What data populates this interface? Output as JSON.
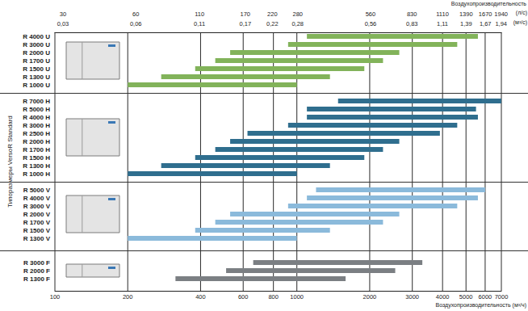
{
  "chart_data": {
    "type": "bar",
    "orientation": "horizontal",
    "log": "x",
    "grid": true,
    "xlabel": "Воздухопроизводительность (м³/ч)",
    "ylabel": "Типоразмеры VersoR Standard",
    "x2label": "Воздухопроизводительность",
    "x2units": [
      "(л/с)",
      "(м³/с)"
    ],
    "xlim": [
      100,
      7000
    ],
    "xticks": [
      100,
      200,
      400,
      600,
      800,
      1000,
      2000,
      3000,
      4000,
      5000,
      6000,
      7000
    ],
    "x2lim": [
      27.78,
      1944.44
    ],
    "x2ticks": [
      {
        "value": 30,
        "label": "30\n0,03"
      },
      {
        "value": 60,
        "label": "60\n0,06"
      },
      {
        "value": 110,
        "label": "110\n0,11"
      },
      {
        "value": 170,
        "label": "170\n0,17"
      },
      {
        "value": 220,
        "label": "220\n0,22"
      },
      {
        "value": 280,
        "label": "280\n0,28"
      },
      {
        "value": 560,
        "label": "560\n0,56"
      },
      {
        "value": 830,
        "label": "830\n0,83"
      },
      {
        "value": 1110,
        "label": "1110\n1,11"
      },
      {
        "value": 1390,
        "label": "1390\n1,39"
      },
      {
        "value": 1670,
        "label": "1670\n1,67"
      },
      {
        "value": 1940,
        "label": "1940\n1,94"
      }
    ],
    "categories": [
      "R 4000 U",
      "R 3000 U",
      "R 2000 U",
      "R 1700 U",
      "R 1500 U",
      "R 1300 U",
      "R 1000 U",
      null,
      "R 7000 H",
      "R 5000 H",
      "R 4000 H",
      "R 3000 H",
      "R 2500 H",
      "R 2000 H",
      "R 1700 H",
      "R 1500 H",
      "R 1300 H",
      "R 1000 H",
      null,
      "R 5000 V",
      "R 4000 V",
      "R 3000 V",
      "R 2000 V",
      "R 1700 V",
      "R 1500 V",
      "R 1300 V",
      null,
      null,
      "R 3000 F",
      "R 2000 F",
      "R 1300 F",
      null
    ],
    "values": [
      [
        1100,
        5600
      ],
      [
        920,
        4600
      ],
      [
        530,
        2650
      ],
      [
        460,
        2270
      ],
      [
        380,
        1900
      ],
      [
        275,
        1370
      ],
      [
        200,
        1000
      ],
      null,
      [
        1480,
        7000
      ],
      [
        1100,
        5500
      ],
      [
        1100,
        5600
      ],
      [
        920,
        4600
      ],
      [
        625,
        3900
      ],
      [
        530,
        2650
      ],
      [
        460,
        2270
      ],
      [
        380,
        1900
      ],
      [
        275,
        1370
      ],
      [
        200,
        1000
      ],
      null,
      [
        1200,
        6000
      ],
      [
        1100,
        5600
      ],
      [
        920,
        4600
      ],
      [
        530,
        2650
      ],
      [
        460,
        2270
      ],
      [
        380,
        1370
      ],
      [
        200,
        1000
      ],
      null,
      null,
      [
        660,
        3300
      ],
      [
        510,
        2550
      ],
      [
        315,
        1590
      ],
      null
    ],
    "colors": [
      "#82b35a",
      "#82b35a",
      "#82b35a",
      "#82b35a",
      "#82b35a",
      "#82b35a",
      "#82b35a",
      null,
      "#2f6e8e",
      "#2f6e8e",
      "#2f6e8e",
      "#2f6e8e",
      "#2f6e8e",
      "#2f6e8e",
      "#2f6e8e",
      "#2f6e8e",
      "#2f6e8e",
      "#2f6e8e",
      null,
      "#8bbadb",
      "#8bbadb",
      "#8bbadb",
      "#8bbadb",
      "#8bbadb",
      "#8bbadb",
      "#8bbadb",
      null,
      null,
      "#7b7f83",
      "#7b7f83",
      "#7b7f83",
      null
    ]
  }
}
